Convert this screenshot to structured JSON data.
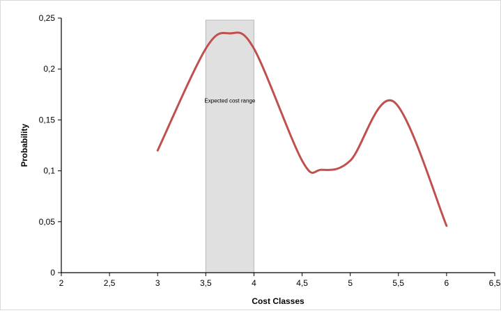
{
  "chart_data": {
    "type": "line",
    "xlabel": "Cost Classes",
    "ylabel": "Probability",
    "xlim": [
      2,
      6.5
    ],
    "ylim": [
      0,
      0.25
    ],
    "x_ticks": [
      2,
      2.5,
      3,
      3.5,
      4,
      4.5,
      5,
      5.5,
      6,
      6.5
    ],
    "y_ticks": [
      0,
      0.05,
      0.1,
      0.15,
      0.2,
      0.25
    ],
    "x_tick_labels": [
      "2",
      "2,5",
      "3",
      "3,5",
      "4",
      "4,5",
      "5",
      "5,5",
      "6",
      "6,5"
    ],
    "y_tick_labels": [
      "0",
      "0,05",
      "0,1",
      "0,15",
      "0,2",
      "0,25"
    ],
    "grid": false,
    "legend": "none",
    "series": [
      {
        "color": "#c0504d",
        "smooth": true,
        "x": [
          3.0,
          3.5,
          3.75,
          4.0,
          4.5,
          4.7,
          5.0,
          5.45,
          6.0
        ],
        "y": [
          0.12,
          0.22,
          0.235,
          0.22,
          0.11,
          0.101,
          0.11,
          0.168,
          0.046
        ]
      }
    ],
    "shaded_region": {
      "x_start": 3.5,
      "x_end": 4.0,
      "y_top": 0.248,
      "label": "Expected cost range",
      "fill": "#e0e0e0",
      "stroke": "#b8b8b8"
    }
  }
}
